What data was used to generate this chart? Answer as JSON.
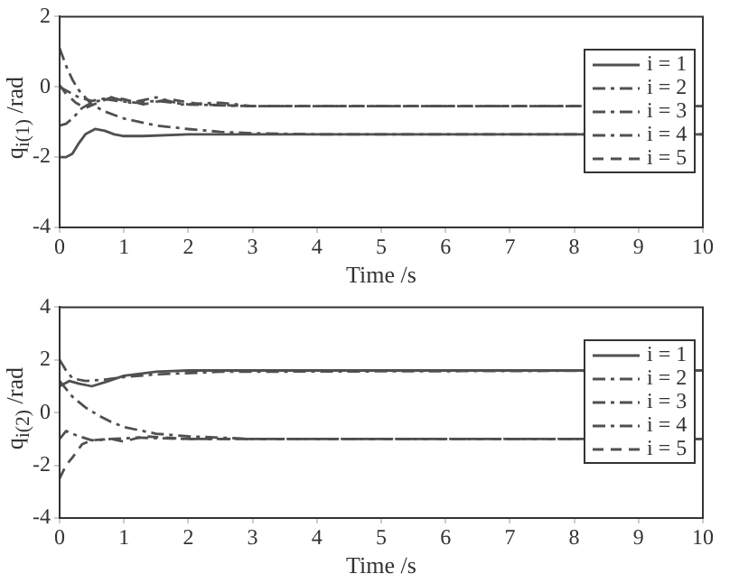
{
  "chart_data": [
    {
      "type": "line",
      "xlabel": "Time /s",
      "ylabel": "q$_{i(1)}$ /rad",
      "xlim": [
        0,
        10
      ],
      "xticks": [
        0,
        1,
        2,
        3,
        4,
        5,
        6,
        7,
        8,
        9,
        10
      ],
      "ylim": [
        -4,
        2
      ],
      "yticks": [
        -4,
        -2,
        0,
        2
      ],
      "grid": false,
      "legend": "top right",
      "marker": "none",
      "series": [
        {
          "name": "i = 1",
          "color": "#505050",
          "line_style": "solid",
          "x": [
            0,
            0.1,
            0.2,
            0.3,
            0.4,
            0.55,
            0.7,
            0.85,
            1,
            1.3,
            2,
            10
          ],
          "values": [
            -2,
            -2,
            -1.9,
            -1.6,
            -1.35,
            -1.2,
            -1.25,
            -1.35,
            -1.4,
            -1.4,
            -1.35,
            -1.35
          ]
        },
        {
          "name": "i = 2",
          "color": "#505050",
          "line_style": "dashdot",
          "x": [
            0,
            0.1,
            0.3,
            0.5,
            0.8,
            1.1,
            1.5,
            1.9,
            2.5,
            3,
            10
          ],
          "values": [
            0,
            -0.1,
            -0.3,
            -0.4,
            -0.3,
            -0.45,
            -0.3,
            -0.5,
            -0.45,
            -0.55,
            -0.55
          ]
        },
        {
          "name": "i = 3",
          "color": "#505050",
          "line_style": "dashdot",
          "x": [
            0,
            0.1,
            0.2,
            0.35,
            0.5,
            0.7,
            0.9,
            1.2,
            1.5,
            2,
            3,
            10
          ],
          "values": [
            -1.1,
            -1.05,
            -0.9,
            -0.6,
            -0.45,
            -0.35,
            -0.4,
            -0.45,
            -0.4,
            -0.5,
            -0.55,
            -0.55
          ]
        },
        {
          "name": "i = 4",
          "color": "#505050",
          "line_style": "dashdot",
          "x": [
            0,
            0.1,
            0.2,
            0.3,
            0.5,
            0.7,
            1,
            1.5,
            2,
            2.5,
            3,
            4,
            10
          ],
          "values": [
            1.1,
            0.6,
            0.2,
            -0.1,
            -0.5,
            -0.7,
            -0.9,
            -1.1,
            -1.2,
            -1.28,
            -1.32,
            -1.35,
            -1.35
          ]
        },
        {
          "name": "i = 5",
          "color": "#505050",
          "line_style": "dashed",
          "x": [
            0,
            0.1,
            0.25,
            0.4,
            0.6,
            0.8,
            1,
            1.3,
            1.7,
            2.2,
            3,
            10
          ],
          "values": [
            0.05,
            -0.2,
            -0.45,
            -0.6,
            -0.45,
            -0.3,
            -0.35,
            -0.5,
            -0.35,
            -0.5,
            -0.55,
            -0.55
          ]
        }
      ]
    },
    {
      "type": "line",
      "xlabel": "Time /s",
      "ylabel": "q$_{i(2)}$ /rad",
      "xlim": [
        0,
        10
      ],
      "xticks": [
        0,
        1,
        2,
        3,
        4,
        5,
        6,
        7,
        8,
        9,
        10
      ],
      "ylim": [
        -4,
        4
      ],
      "yticks": [
        -4,
        -2,
        0,
        2,
        4
      ],
      "grid": false,
      "legend": "top right",
      "marker": "none",
      "series": [
        {
          "name": "i = 1",
          "color": "#505050",
          "line_style": "solid",
          "x": [
            0,
            0.15,
            0.3,
            0.5,
            0.7,
            1,
            1.5,
            2,
            10
          ],
          "values": [
            1,
            1.2,
            1.1,
            1,
            1.15,
            1.4,
            1.55,
            1.6,
            1.6
          ]
        },
        {
          "name": "i = 2",
          "color": "#505050",
          "line_style": "dashdot",
          "x": [
            0,
            0.1,
            0.2,
            0.4,
            0.7,
            1,
            1.5,
            2.5,
            10
          ],
          "values": [
            2,
            1.6,
            1.3,
            1.2,
            1.25,
            1.35,
            1.45,
            1.55,
            1.6
          ]
        },
        {
          "name": "i = 3",
          "color": "#505050",
          "line_style": "dashdot",
          "x": [
            0,
            0.1,
            0.3,
            0.5,
            0.8,
            1.2,
            2,
            10
          ],
          "values": [
            -1,
            -0.7,
            -0.9,
            -1.05,
            -1,
            -0.95,
            -1,
            -1
          ]
        },
        {
          "name": "i = 4",
          "color": "#505050",
          "line_style": "dashdot",
          "x": [
            0,
            0.1,
            0.2,
            0.4,
            0.6,
            0.8,
            1,
            1.5,
            2,
            3,
            10
          ],
          "values": [
            1.2,
            0.9,
            0.6,
            0.2,
            -0.1,
            -0.35,
            -0.55,
            -0.8,
            -0.9,
            -1,
            -1
          ]
        },
        {
          "name": "i = 5",
          "color": "#505050",
          "line_style": "dashed",
          "x": [
            0,
            0.1,
            0.2,
            0.35,
            0.5,
            0.8,
            1,
            1.3,
            2,
            10
          ],
          "values": [
            -2.5,
            -2,
            -1.7,
            -1.2,
            -1.05,
            -1,
            -1.1,
            -0.9,
            -1,
            -1
          ]
        }
      ]
    }
  ]
}
